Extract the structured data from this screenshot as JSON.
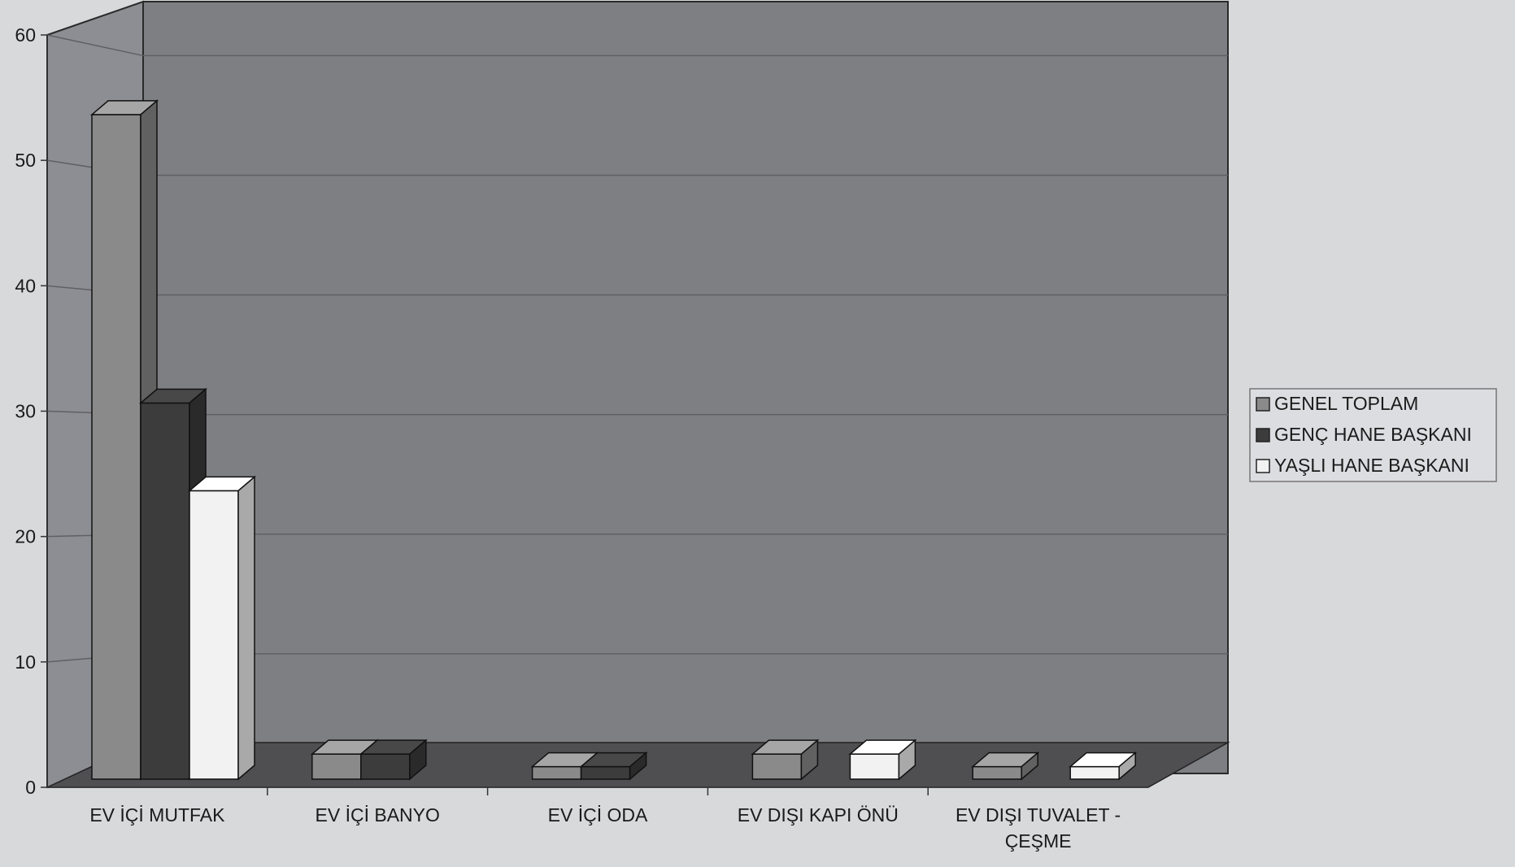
{
  "chart_data": {
    "type": "bar",
    "categories": [
      "EV İÇİ MUTFAK",
      "EV İÇİ BANYO",
      "EV İÇİ ODA",
      "EV DIŞI KAPI ÖNÜ",
      "EV DIŞI TUVALET - ÇEŞME"
    ],
    "series": [
      {
        "name": "GENEL TOPLAM",
        "values": [
          53,
          2,
          1,
          2,
          1
        ],
        "color": "#8a8a8a"
      },
      {
        "name": "GENÇ HANE BAŞKANI",
        "values": [
          30,
          2,
          1,
          0,
          0
        ],
        "color": "#3c3c3c"
      },
      {
        "name": "YAŞLI HANE BAŞKANI",
        "values": [
          23,
          0,
          0,
          2,
          1
        ],
        "color": "#f2f2f2"
      }
    ],
    "ylim": [
      0,
      60
    ],
    "yticks": [
      0,
      10,
      20,
      30,
      40,
      50,
      60
    ],
    "grid": true,
    "legend_position": "right",
    "style": "3d-clustered-bar",
    "colors": {
      "wall": "#7e7f83",
      "floor": "#4f4f52",
      "page_bg": "#d8d9db",
      "gridline": "#5f6064",
      "text": "#1a1a1a"
    }
  }
}
